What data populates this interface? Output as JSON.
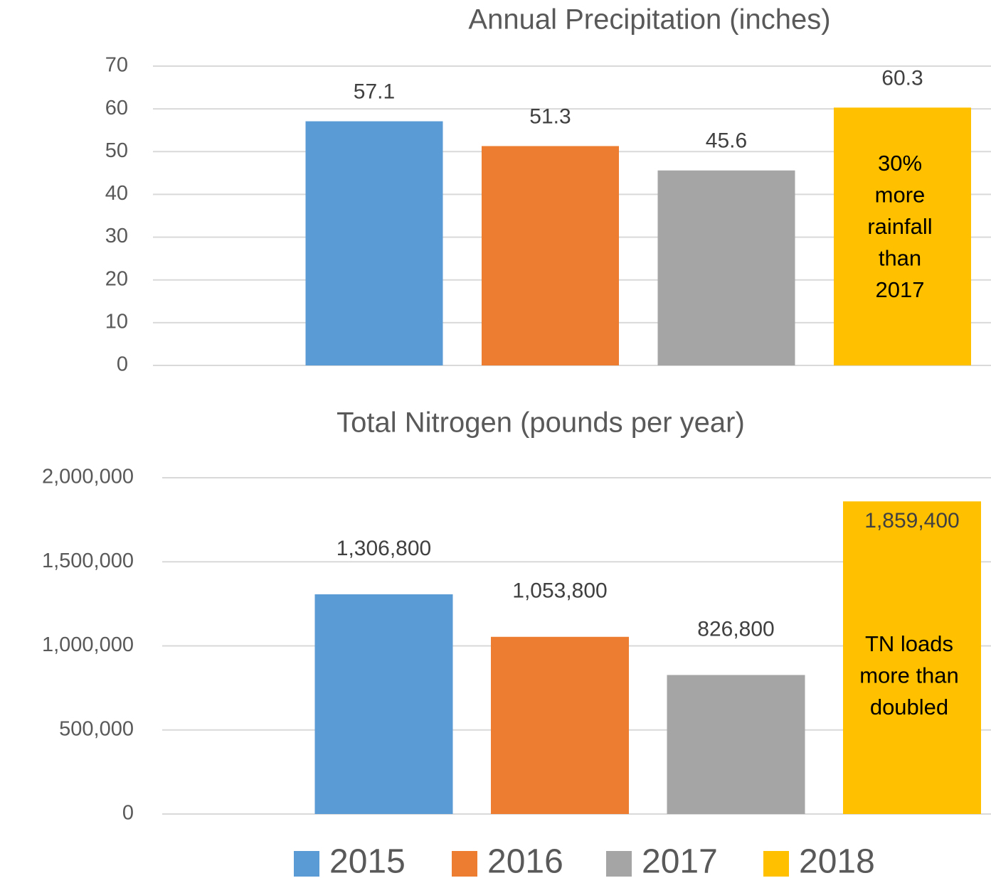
{
  "chart_data": [
    {
      "type": "bar",
      "title": "Annual Precipitation (inches)",
      "values": [
        57.1,
        51.3,
        45.6,
        60.3
      ],
      "ylim": [
        0,
        70
      ],
      "yticks": [
        0,
        10,
        20,
        30,
        40,
        50,
        60,
        70
      ],
      "grid": true,
      "annotation": [
        "30%",
        "more",
        "rainfall",
        "than",
        "2017"
      ]
    },
    {
      "type": "bar",
      "title": "Total Nitrogen (pounds per year)",
      "values": [
        1306800,
        1053800,
        826800,
        1859400
      ],
      "value_labels": [
        "1,306,800",
        "1,053,800",
        "826,800",
        "1,859,400"
      ],
      "ylim": [
        0,
        2000000
      ],
      "yticks": [
        0,
        {
          "value": 500000,
          "label": "500,000"
        },
        {
          "value": 1000000,
          "label": "1,000,000"
        },
        {
          "value": 1500000,
          "label": "1,500,000"
        },
        {
          "value": 2000000,
          "label": "2,000,000"
        }
      ],
      "grid": true,
      "annotation": [
        "TN loads",
        "more than",
        "doubled"
      ]
    }
  ],
  "legend": [
    {
      "name": "2015",
      "color": "#5b9bd5"
    },
    {
      "name": "2016",
      "color": "#ed7d31"
    },
    {
      "name": "2017",
      "color": "#a5a5a5"
    },
    {
      "name": "2018",
      "color": "#ffc000"
    }
  ]
}
